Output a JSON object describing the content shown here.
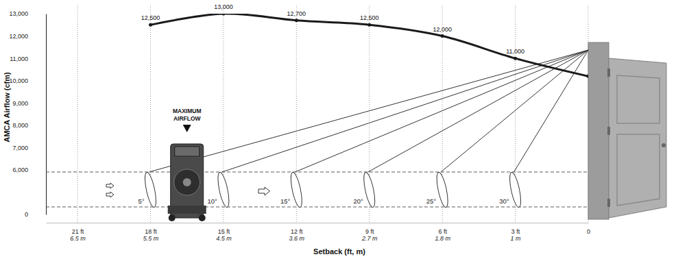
{
  "chart_data": {
    "type": "line",
    "x_label": "Setback (ft, m)",
    "y_label": "AMCA Airflow (cfm)",
    "x": [
      18,
      15,
      12,
      9,
      6,
      3,
      0
    ],
    "values": [
      12500,
      13000,
      12700,
      12500,
      12000,
      11000,
      10200
    ],
    "value_labels": [
      "12,500",
      "13,000",
      "12,700",
      "12,500",
      "12,000",
      "11,000",
      null
    ],
    "data_labels": true,
    "angle_labels": [
      "5°",
      "10°",
      "15°",
      "20°",
      "25°",
      "30°",
      null
    ],
    "color": "#1a1a1a",
    "marker": "circle",
    "line_style": "solid",
    "xlim": [
      22.3,
      0
    ],
    "xticks": [
      {
        "value": 21,
        "label": "21 ft"
      },
      {
        "value": 18,
        "label": "18 ft"
      },
      {
        "value": 15,
        "label": "15 ft"
      },
      {
        "value": 12,
        "label": "12 ft"
      },
      {
        "value": 9,
        "label": "9 ft"
      },
      {
        "value": 6,
        "label": "6 ft"
      },
      {
        "value": 3,
        "label": "3 ft"
      },
      0
    ],
    "x_secondary_labels": [
      "6.5 m",
      "5.5 m",
      "4.5 m",
      "3.6 m",
      "2.7 m",
      "1.8 m",
      "1 m",
      null
    ],
    "ylim": [
      0,
      13000
    ],
    "yticks": [
      0,
      {
        "value": 6000,
        "label": "6,000"
      },
      {
        "value": 7000,
        "label": "7,000"
      },
      {
        "value": 8000,
        "label": "8,000"
      },
      {
        "value": 9000,
        "label": "9,000"
      },
      {
        "value": 10000,
        "label": "10,000"
      },
      {
        "value": 11000,
        "label": "11,000"
      },
      {
        "value": 12000,
        "label": "12,000"
      },
      {
        "value": 13000,
        "label": "13,000"
      }
    ],
    "grid": true,
    "annotations": [
      {
        "text": "MAXIMUM AIRFLOW",
        "x": 16.5
      }
    ]
  }
}
